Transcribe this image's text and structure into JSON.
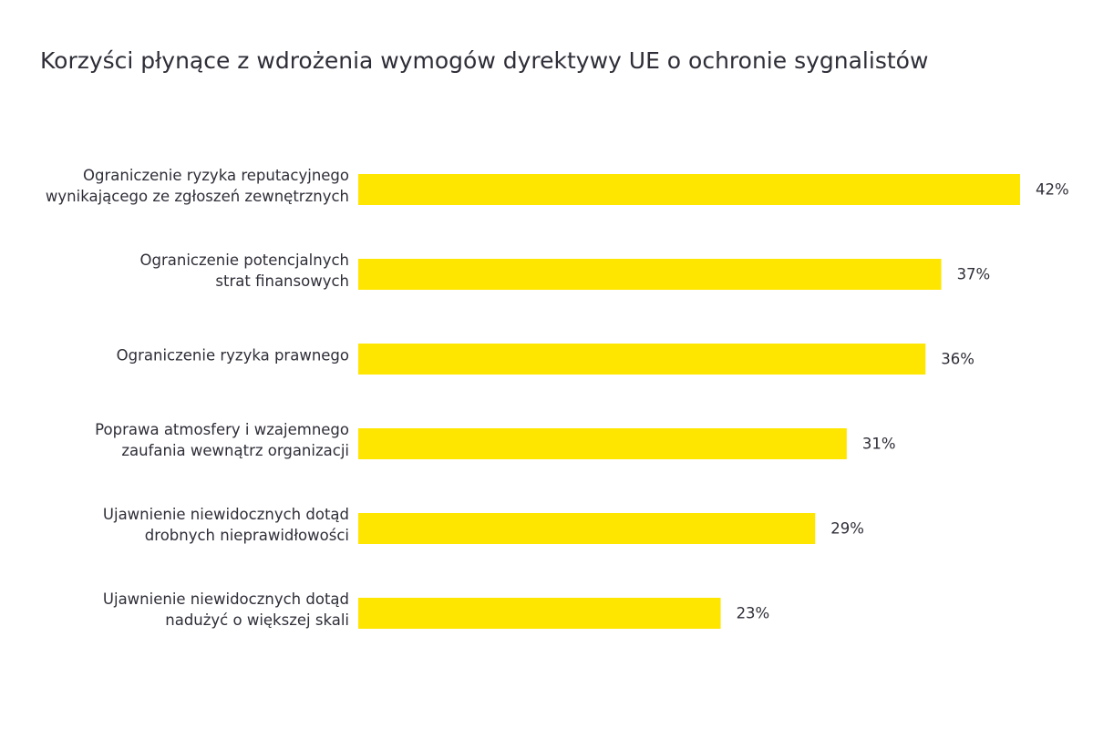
{
  "chart_data": {
    "type": "bar",
    "orientation": "horizontal",
    "title": "Korzyści płynące z wdrożenia wymogów dyrektywy UE o ochronie sygnalistów",
    "categories": [
      [
        "Ograniczenie ryzyka reputacyjnego",
        "wynikającego ze zgłoszeń zewnętrznych"
      ],
      [
        "Ograniczenie potencjalnych",
        "strat finansowych"
      ],
      [
        "Ograniczenie ryzyka prawnego"
      ],
      [
        "Poprawa atmosfery i wzajemnego",
        "zaufania wewnątrz organizacji"
      ],
      [
        "Ujawnienie niewidocznych dotąd",
        "drobnych nieprawidłowości"
      ],
      [
        "Ujawnienie niewidocznych dotąd",
        "nadużyć o większej skali"
      ]
    ],
    "values": [
      42,
      37,
      36,
      31,
      29,
      23
    ],
    "value_labels": [
      "42%",
      "37%",
      "36%",
      "31%",
      "29%",
      "23%"
    ],
    "xlim": [
      0,
      42
    ],
    "bar_color": "#ffe600",
    "grid": false,
    "legend": "none"
  }
}
